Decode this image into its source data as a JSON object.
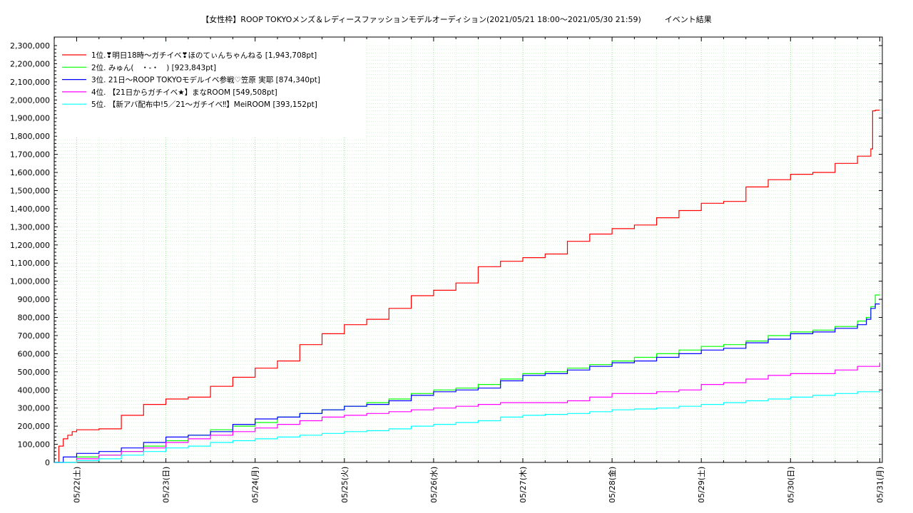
{
  "chart_data": {
    "type": "line",
    "title": "【女性枠】ROOP TOKYOメンズ＆レディースファッションモデルオーディション(2021/05/21 18:00〜2021/05/30 21:59)　　　イベント結果",
    "xlabel": "",
    "ylabel": "",
    "x_ticks": [
      "05/22(土)",
      "05/23(日)",
      "05/24(月)",
      "05/25(火)",
      "05/26(水)",
      "05/27(木)",
      "05/28(金)",
      "05/29(土)",
      "05/30(日)",
      "05/31(月)"
    ],
    "y_ticks": [
      "0",
      "100,000",
      "200,000",
      "300,000",
      "400,000",
      "500,000",
      "600,000",
      "700,000",
      "800,000",
      "900,000",
      "1,000,000",
      "1,100,000",
      "1,200,000",
      "1,300,000",
      "1,400,000",
      "1,500,000",
      "1,600,000",
      "1,700,000",
      "1,800,000",
      "1,900,000",
      "2,000,000",
      "2,100,000",
      "2,200,000",
      "2,300,000"
    ],
    "x_range_days": [
      -0.25,
      9.0
    ],
    "ylim": [
      0,
      2300000
    ],
    "grid": true,
    "legend_position": "top-left",
    "series": [
      {
        "name": "1位.❣明日18時〜ガチイベ❣ほのてぃんちゃんねる [1,943,708pt]",
        "color": "#ff0000",
        "x_days": [
          -0.25,
          -0.2,
          -0.15,
          -0.1,
          -0.05,
          0,
          0.25,
          0.5,
          0.75,
          1,
          1.25,
          1.5,
          1.75,
          2,
          2.25,
          2.5,
          2.75,
          3,
          3.25,
          3.5,
          3.75,
          4,
          4.25,
          4.5,
          4.75,
          5,
          5.25,
          5.5,
          5.75,
          6,
          6.25,
          6.5,
          6.75,
          7,
          7.25,
          7.5,
          7.75,
          8,
          8.25,
          8.5,
          8.75,
          8.9,
          8.92,
          8.95,
          9.0
        ],
        "y": [
          0,
          90000,
          130000,
          150000,
          170000,
          180000,
          185000,
          260000,
          320000,
          350000,
          360000,
          420000,
          470000,
          520000,
          560000,
          650000,
          710000,
          760000,
          790000,
          850000,
          920000,
          950000,
          990000,
          1080000,
          1110000,
          1130000,
          1150000,
          1220000,
          1260000,
          1290000,
          1310000,
          1350000,
          1390000,
          1430000,
          1440000,
          1520000,
          1560000,
          1590000,
          1600000,
          1650000,
          1690000,
          1730000,
          1940000,
          1943708,
          1943708
        ]
      },
      {
        "name": "2位. みゅん(　・-・　) [923,843pt]",
        "color": "#00ff00",
        "x_days": [
          -0.25,
          0,
          0.25,
          0.5,
          0.75,
          1,
          1.25,
          1.5,
          1.75,
          2,
          2.25,
          2.5,
          2.75,
          3,
          3.25,
          3.5,
          3.75,
          4,
          4.25,
          4.5,
          4.75,
          5,
          5.25,
          5.5,
          5.75,
          6,
          6.25,
          6.5,
          6.75,
          7,
          7.25,
          7.5,
          7.75,
          8,
          8.25,
          8.5,
          8.75,
          8.85,
          8.9,
          8.95,
          9.0
        ],
        "y": [
          0,
          30000,
          40000,
          60000,
          90000,
          120000,
          150000,
          180000,
          200000,
          220000,
          250000,
          270000,
          290000,
          310000,
          330000,
          350000,
          380000,
          400000,
          410000,
          430000,
          460000,
          490000,
          500000,
          520000,
          540000,
          560000,
          580000,
          600000,
          620000,
          640000,
          650000,
          670000,
          700000,
          720000,
          730000,
          750000,
          780000,
          800000,
          860000,
          923843,
          923843
        ]
      },
      {
        "name": "3位. 21日〜ROOP TOKYOモデルイベ参戦♡笠原 実耶 [874,340pt]",
        "color": "#0000ff",
        "x_days": [
          -0.25,
          -0.15,
          0,
          0.25,
          0.5,
          0.75,
          1,
          1.25,
          1.5,
          1.75,
          2,
          2.25,
          2.5,
          2.75,
          3,
          3.25,
          3.5,
          3.75,
          4,
          4.25,
          4.5,
          4.75,
          5,
          5.25,
          5.5,
          5.75,
          6,
          6.25,
          6.5,
          6.75,
          7,
          7.25,
          7.5,
          7.75,
          8,
          8.25,
          8.5,
          8.75,
          8.85,
          8.9,
          8.95,
          9.0
        ],
        "y": [
          0,
          30000,
          50000,
          60000,
          80000,
          110000,
          140000,
          150000,
          170000,
          210000,
          240000,
          250000,
          270000,
          290000,
          310000,
          320000,
          340000,
          370000,
          390000,
          400000,
          410000,
          450000,
          480000,
          490000,
          510000,
          530000,
          550000,
          560000,
          580000,
          600000,
          620000,
          630000,
          660000,
          680000,
          710000,
          720000,
          740000,
          760000,
          790000,
          850000,
          874340,
          874340
        ]
      },
      {
        "name": "4位. 【21日からガチイベ★】まなROOM [549,508pt]",
        "color": "#ff00ff",
        "x_days": [
          -0.25,
          0,
          0.25,
          0.5,
          0.75,
          1,
          1.25,
          1.5,
          1.75,
          2,
          2.25,
          2.5,
          2.75,
          3,
          3.25,
          3.5,
          3.75,
          4,
          4.25,
          4.5,
          4.75,
          5,
          5.25,
          5.5,
          5.75,
          6,
          6.25,
          6.5,
          6.75,
          7,
          7.25,
          7.5,
          7.75,
          8,
          8.25,
          8.5,
          8.75,
          9.0
        ],
        "y": [
          0,
          20000,
          40000,
          60000,
          80000,
          110000,
          130000,
          150000,
          170000,
          190000,
          210000,
          230000,
          250000,
          260000,
          270000,
          280000,
          290000,
          300000,
          310000,
          320000,
          330000,
          330000,
          330000,
          340000,
          360000,
          380000,
          380000,
          390000,
          400000,
          430000,
          440000,
          460000,
          480000,
          490000,
          490000,
          510000,
          530000,
          549508
        ]
      },
      {
        "name": "5位. 【新アバ配布中!5／21〜ガチイベ‼】MeiROOM [393,152pt]",
        "color": "#00ffff",
        "x_days": [
          -0.25,
          0,
          0.25,
          0.5,
          0.75,
          1,
          1.25,
          1.5,
          1.75,
          2,
          2.25,
          2.5,
          2.75,
          3,
          3.25,
          3.5,
          3.75,
          4,
          4.25,
          4.5,
          4.75,
          5,
          5.25,
          5.5,
          5.75,
          6,
          6.25,
          6.5,
          6.75,
          7,
          7.25,
          7.5,
          7.75,
          8,
          8.25,
          8.5,
          8.75,
          9.0
        ],
        "y": [
          0,
          10000,
          20000,
          40000,
          60000,
          80000,
          90000,
          110000,
          120000,
          130000,
          140000,
          150000,
          160000,
          170000,
          175000,
          185000,
          200000,
          210000,
          220000,
          230000,
          250000,
          260000,
          265000,
          270000,
          280000,
          290000,
          295000,
          300000,
          310000,
          320000,
          330000,
          340000,
          350000,
          360000,
          370000,
          380000,
          390000,
          393152
        ]
      }
    ]
  }
}
